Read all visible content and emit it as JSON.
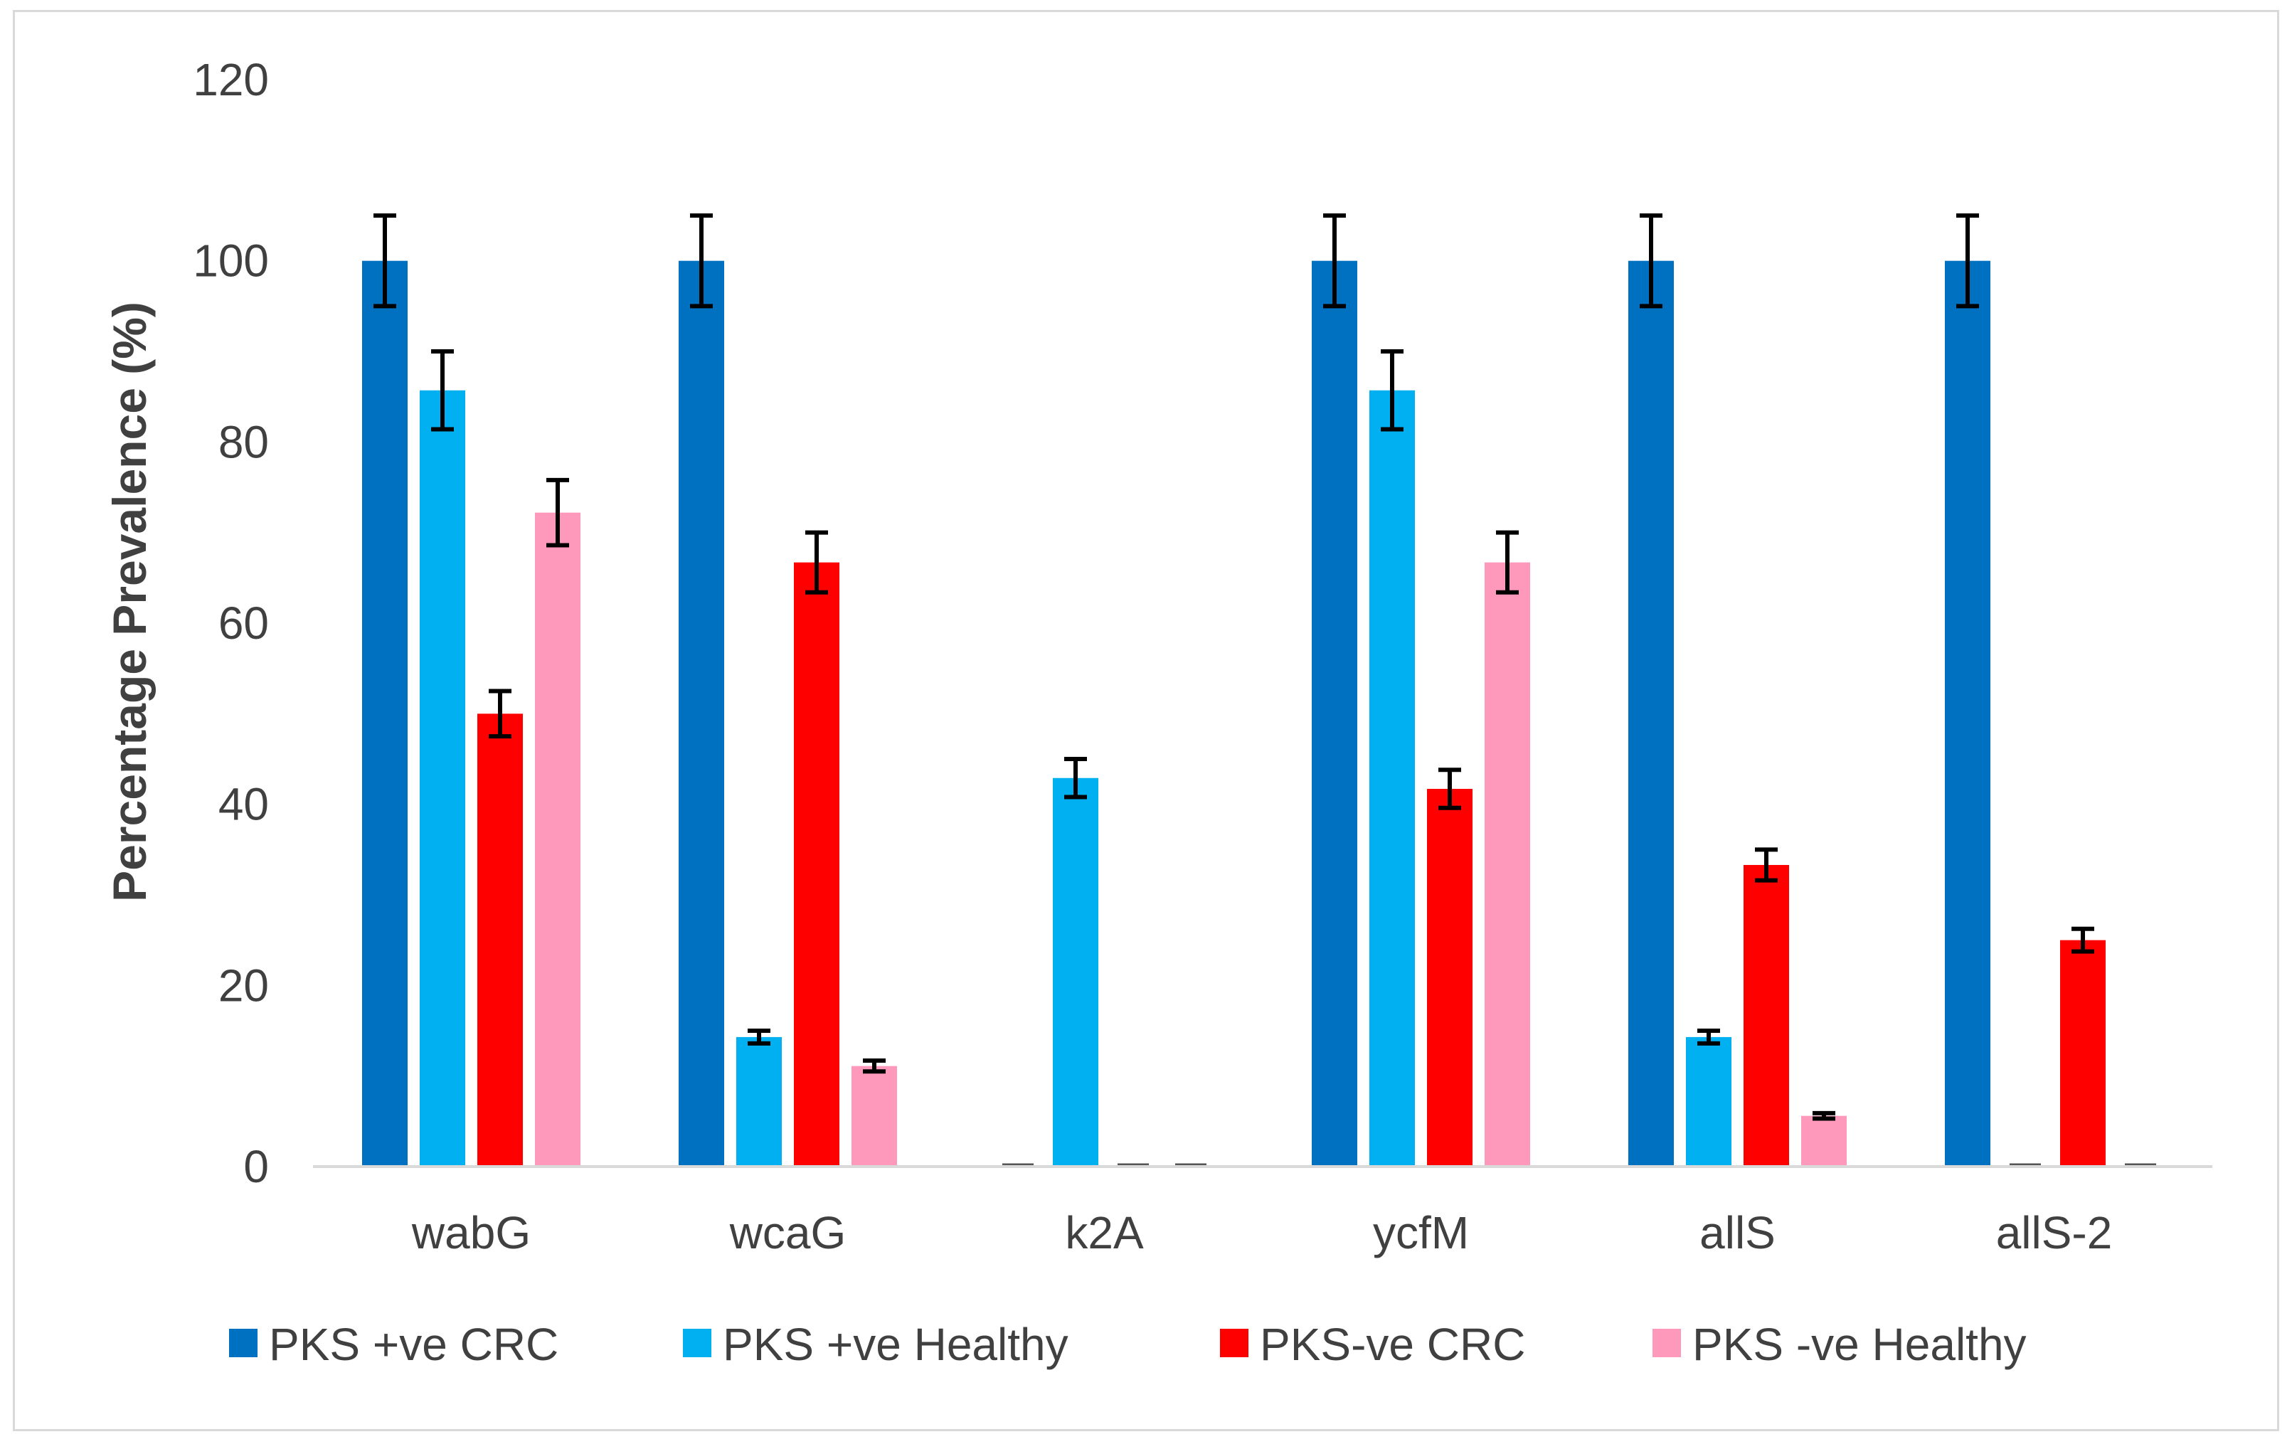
{
  "chart_data": {
    "type": "bar",
    "title": "",
    "xlabel": "",
    "ylabel": "Percentage Prevalence (%)",
    "ylim": [
      0,
      120
    ],
    "yticks": [
      0,
      20,
      40,
      60,
      80,
      100,
      120
    ],
    "grid": false,
    "legend_position": "bottom",
    "categories": [
      "wabG",
      "wcaG",
      "k2A",
      "ycfM",
      "allS",
      "allS-2"
    ],
    "series": [
      {
        "name": "PKS +ve CRC",
        "color": "#0070C0",
        "values": [
          100,
          100,
          0,
          100,
          100,
          100
        ],
        "errors": [
          5,
          5,
          0,
          5,
          5,
          5
        ]
      },
      {
        "name": "PKS +ve Healthy",
        "color": "#00B0F0",
        "values": [
          85.7,
          14.3,
          42.9,
          85.7,
          14.3,
          0
        ],
        "errors": [
          4.3,
          0.7,
          2.1,
          4.3,
          0.7,
          0
        ]
      },
      {
        "name": "PKS-ve CRC",
        "color": "#FF0000",
        "values": [
          50,
          66.7,
          0,
          41.7,
          33.3,
          25
        ],
        "errors": [
          2.5,
          3.3,
          0,
          2.1,
          1.7,
          1.25
        ]
      },
      {
        "name": "PKS -ve Healthy",
        "color": "#FF99BB",
        "values": [
          72.2,
          11.1,
          0,
          66.7,
          5.6,
          0
        ],
        "errors": [
          3.6,
          0.6,
          0,
          3.3,
          0.3,
          0
        ]
      }
    ]
  }
}
